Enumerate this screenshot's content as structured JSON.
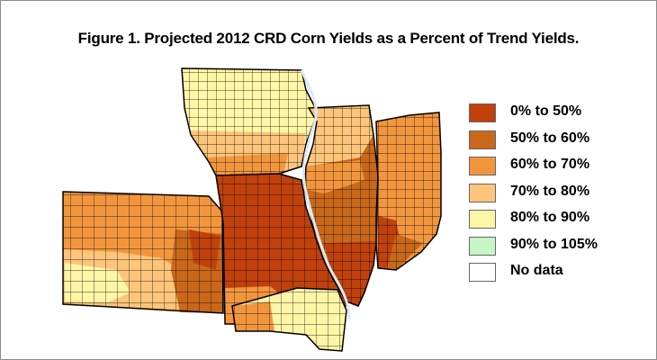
{
  "title": "Figure 1. Projected 2012 CRD Corn Yields as a Percent of Trend Yields.",
  "legend": [
    {
      "label": "0% to 50%",
      "color": "#c0410c"
    },
    {
      "label": "50% to 60%",
      "color": "#c9681a"
    },
    {
      "label": "60% to 70%",
      "color": "#f2963e"
    },
    {
      "label": "70% to 80%",
      "color": "#fcc57a"
    },
    {
      "label": "80% to 90%",
      "color": "#fdf6a6"
    },
    {
      "label": "90% to 105%",
      "color": "#c6f5c6"
    },
    {
      "label": "No data",
      "color": "#ffffff"
    }
  ],
  "map": {
    "states": [
      "Kansas",
      "Missouri",
      "Iowa",
      "Illinois",
      "Indiana",
      "Kentucky"
    ],
    "river_color": "#d9eaf5",
    "border_color": "#000000"
  }
}
